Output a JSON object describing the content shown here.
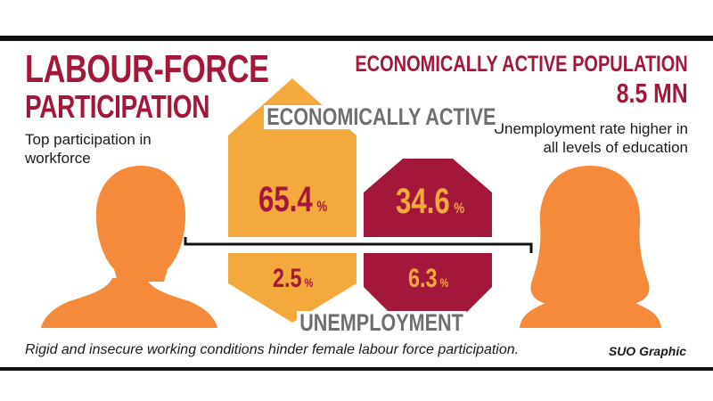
{
  "header": {
    "title_line1": "LABOUR-FORCE",
    "title_line2": "PARTICIPATION",
    "subtitle": "Top participation in workforce"
  },
  "right_panel": {
    "title_line1": "ECONOMICALLY ACTIVE POPULATION",
    "title_line2": "8.5 MN",
    "subtitle": "Unemployment rate higher in all levels of education"
  },
  "bands": {
    "top_label": "ECONOMICALLY ACTIVE",
    "bottom_label": "UNEMPLOYMENT"
  },
  "chart_data": {
    "type": "bar",
    "categories": [
      "Economically active",
      "Unemployment"
    ],
    "series": [
      {
        "group": "male",
        "values": [
          65.4,
          2.5
        ],
        "labels": [
          "65.4",
          "2.5"
        ]
      },
      {
        "group": "female",
        "values": [
          34.6,
          6.3
        ],
        "labels": [
          "34.6",
          "6.3"
        ]
      }
    ],
    "unit": "%"
  },
  "colors": {
    "male": "#f4a93d",
    "female": "#a3183a",
    "figure": "#f58a3a",
    "accent": "#a3183a",
    "band_text": "#6d6e71"
  },
  "icons": {
    "left_figure": "male-silhouette-icon",
    "right_figure": "female-silhouette-icon"
  },
  "footer": {
    "caption": "Rigid and insecure working conditions hinder female labour force participation.",
    "credit": "SUO Graphic"
  }
}
